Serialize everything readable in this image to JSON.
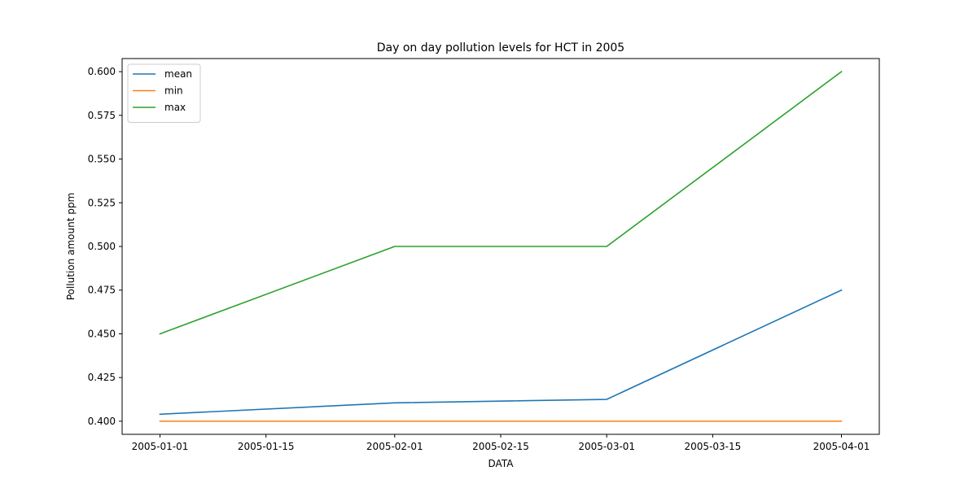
{
  "chart_data": {
    "type": "line",
    "title": "Day on day pollution levels for HCT in 2005",
    "xlabel": "DATA",
    "ylabel": "Pollution amount ppm",
    "x": [
      "2005-01-01",
      "2005-02-01",
      "2005-03-01",
      "2005-04-01"
    ],
    "xlim": [
      "2004-12-27",
      "2005-04-06"
    ],
    "ylim": [
      0.3925,
      0.6075
    ],
    "x_ticks": [
      "2005-01-01",
      "2005-01-15",
      "2005-02-01",
      "2005-02-15",
      "2005-03-01",
      "2005-03-15",
      "2005-04-01"
    ],
    "y_ticks": [
      "0.400",
      "0.425",
      "0.450",
      "0.475",
      "0.500",
      "0.525",
      "0.550",
      "0.575",
      "0.600"
    ],
    "grid": false,
    "legend_position": "top-left",
    "series": [
      {
        "name": "mean",
        "color": "#1f77b4",
        "values": [
          0.404,
          0.4105,
          0.4125,
          0.475
        ]
      },
      {
        "name": "min",
        "color": "#ff7f0e",
        "values": [
          0.4,
          0.4,
          0.4,
          0.4
        ]
      },
      {
        "name": "max",
        "color": "#2ca02c",
        "values": [
          0.45,
          0.5,
          0.5,
          0.6
        ]
      }
    ]
  }
}
